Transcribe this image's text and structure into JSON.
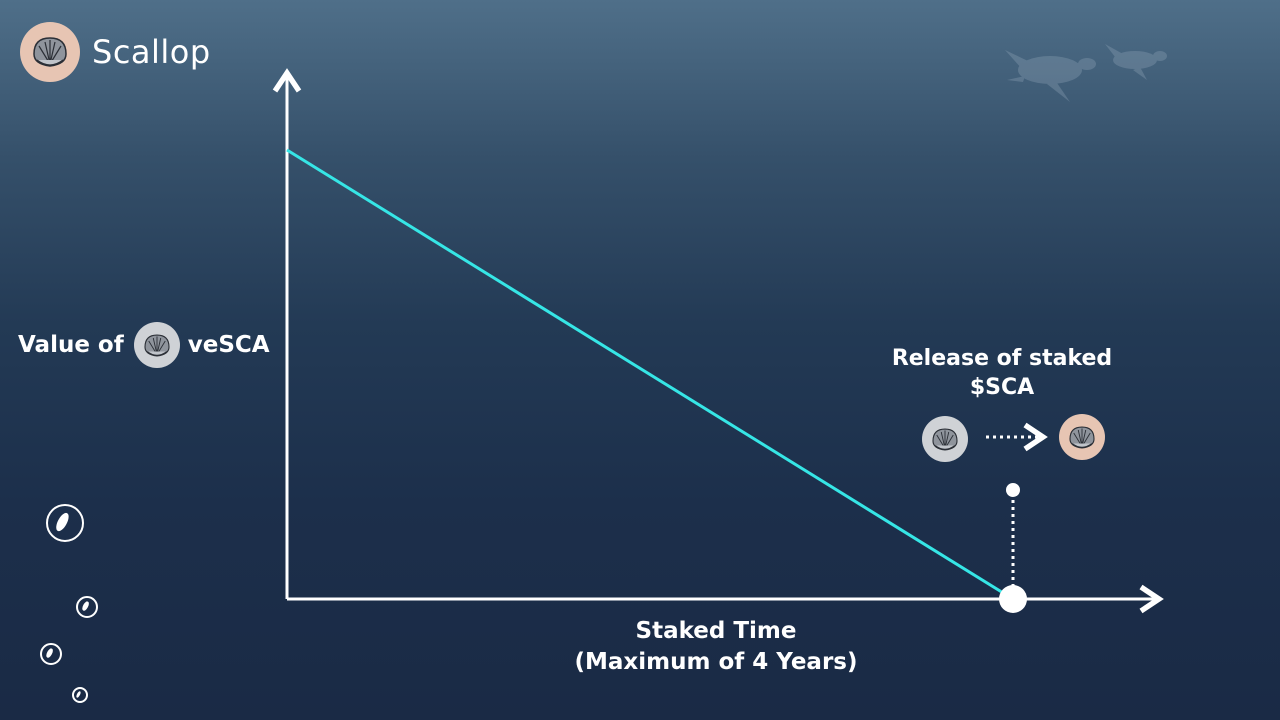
{
  "brand": {
    "name": "Scallop",
    "logo_icon": "scallop-shell-icon"
  },
  "chart_data": {
    "type": "line",
    "xlabel_line1": "Staked Time",
    "xlabel_line2": "(Maximum of 4 Years)",
    "ylabel_prefix": "Value of",
    "ylabel_suffix": "veSCA",
    "x": [
      0,
      4
    ],
    "y": [
      1,
      0
    ],
    "xlim": [
      0,
      4
    ],
    "ylim": [
      0,
      1
    ],
    "line_color": "#36e6e6",
    "axis_color": "#ffffff",
    "annotation": {
      "line1": "Release of staked",
      "line2": "$SCA",
      "x": 4,
      "from_icon": "vesca-coin-icon",
      "to_icon": "sca-coin-icon"
    }
  },
  "colors": {
    "coin_gray": "#cfd2d6",
    "coin_peach": "#e7c5b3"
  }
}
